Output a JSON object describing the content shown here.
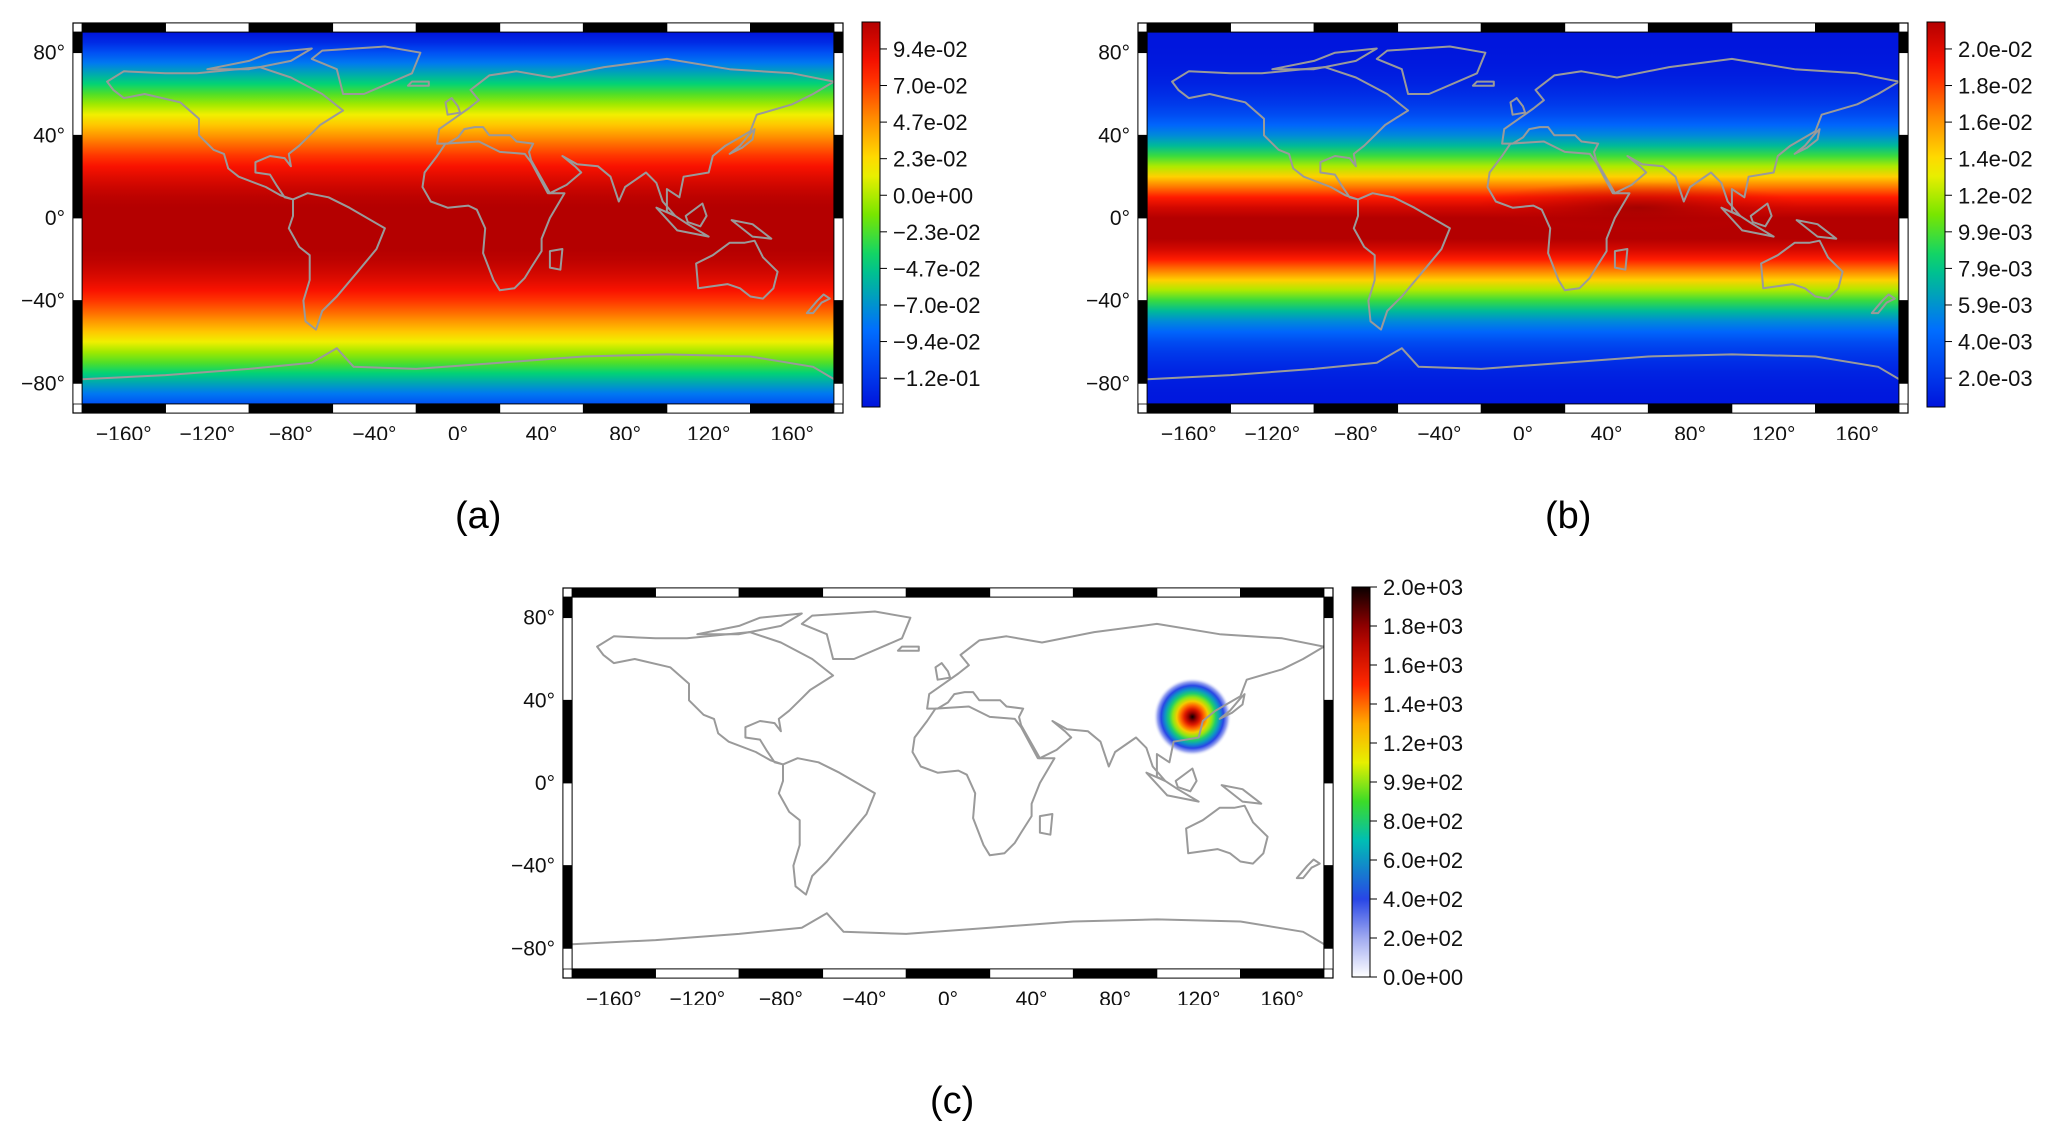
{
  "panels": [
    {
      "id": "a",
      "label": "(a)",
      "x_ticks": [
        "−160°",
        "−120°",
        "−80°",
        "−40°",
        "0°",
        "40°",
        "80°",
        "120°",
        "160°"
      ],
      "y_ticks": [
        "80°",
        "40°",
        "0°",
        "−40°",
        "−80°"
      ],
      "colorbar": {
        "scheme": "rainbow",
        "ticks": [
          "9.4e-02",
          "7.0e-02",
          "4.7e-02",
          "2.3e-02",
          "0.0e+00",
          "−2.3e-02",
          "−4.7e-02",
          "−7.0e-02",
          "−9.4e-02",
          "−1.2e-01"
        ]
      }
    },
    {
      "id": "b",
      "label": "(b)",
      "x_ticks": [
        "−160°",
        "−120°",
        "−80°",
        "−40°",
        "0°",
        "40°",
        "80°",
        "120°",
        "160°"
      ],
      "y_ticks": [
        "80°",
        "40°",
        "0°",
        "−40°",
        "−80°"
      ],
      "colorbar": {
        "scheme": "rainbow",
        "ticks": [
          "2.0e-02",
          "1.8e-02",
          "1.6e-02",
          "1.4e-02",
          "1.2e-02",
          "9.9e-03",
          "7.9e-03",
          "5.9e-03",
          "4.0e-03",
          "2.0e-03"
        ]
      }
    },
    {
      "id": "c",
      "label": "(c)",
      "x_ticks": [
        "−160°",
        "−120°",
        "−80°",
        "−40°",
        "0°",
        "40°",
        "80°",
        "120°",
        "160°"
      ],
      "y_ticks": [
        "80°",
        "40°",
        "0°",
        "−40°",
        "−80°"
      ],
      "colorbar": {
        "scheme": "white-rainbow-black",
        "ticks": [
          "2.0e+03",
          "1.8e+03",
          "1.6e+03",
          "1.4e+03",
          "1.2e+03",
          "9.9e+02",
          "8.0e+02",
          "6.0e+02",
          "4.0e+02",
          "2.0e+02",
          "0.0e+00"
        ]
      }
    }
  ],
  "colors": {
    "coastline": "#9a9a9a",
    "frame": "#000000"
  }
}
